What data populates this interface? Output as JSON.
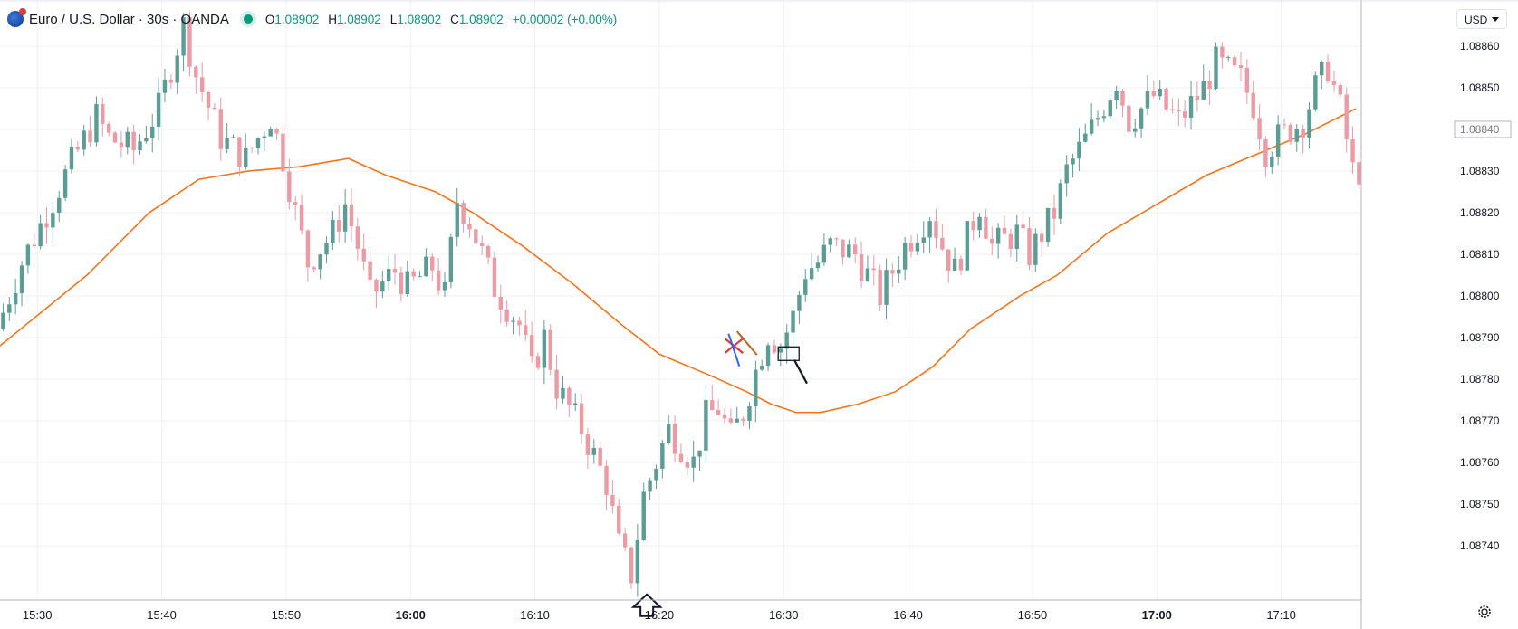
{
  "header": {
    "symbol_title": "Euro / U.S. Dollar · 30s · OANDA",
    "open_key": "O",
    "open": "1.08902",
    "high_key": "H",
    "high": "1.08902",
    "low_key": "L",
    "low": "1.08902",
    "close_key": "C",
    "close": "1.08902",
    "change": "+0.00002 (+0.00%)",
    "status": "market-open-dot"
  },
  "currency_selector": {
    "label": "USD"
  },
  "settings_icon": "gear-icon",
  "colors": {
    "up": "#5b9c94",
    "down": "#ec9aa3",
    "ma": "#f4741b",
    "grid": "#eef0f3",
    "axis_text": "#131722"
  },
  "chart_data": {
    "type": "candlestick",
    "interval": "30s",
    "y_axis": {
      "ylim": [
        1.08728,
        1.0887
      ],
      "ticks": [
        "1.08740",
        "1.08750",
        "1.08760",
        "1.08770",
        "1.08780",
        "1.08790",
        "1.08800",
        "1.08810",
        "1.08820",
        "1.08830",
        "1.08840",
        "1.08850",
        "1.08860"
      ],
      "current_price_label": "1.08840"
    },
    "x_axis": {
      "range": [
        "15:27",
        "17:16"
      ],
      "ticks": [
        {
          "t": "15:30",
          "label": "15:30",
          "bold": false
        },
        {
          "t": "15:40",
          "label": "15:40",
          "bold": false
        },
        {
          "t": "15:50",
          "label": "15:50",
          "bold": false
        },
        {
          "t": "16:00",
          "label": "16:00",
          "bold": true
        },
        {
          "t": "16:10",
          "label": "16:10",
          "bold": false
        },
        {
          "t": "16:20",
          "label": "16:20",
          "bold": false
        },
        {
          "t": "16:30",
          "label": "16:30",
          "bold": false
        },
        {
          "t": "16:40",
          "label": "16:40",
          "bold": false
        },
        {
          "t": "16:50",
          "label": "16:50",
          "bold": false
        },
        {
          "t": "17:00",
          "label": "17:00",
          "bold": true
        },
        {
          "t": "17:10",
          "label": "17:10",
          "bold": false
        }
      ]
    },
    "price_path": [
      [
        "15:27",
        1.08792
      ],
      [
        "15:29",
        1.08808
      ],
      [
        "15:31",
        1.0882
      ],
      [
        "15:33",
        1.08832
      ],
      [
        "15:35",
        1.08843
      ],
      [
        "15:36",
        1.08838
      ],
      [
        "15:38",
        1.08835
      ],
      [
        "15:40",
        1.08845
      ],
      [
        "15:41",
        1.08855
      ],
      [
        "15:42",
        1.08865
      ],
      [
        "15:43",
        1.08853
      ],
      [
        "15:45",
        1.08838
      ],
      [
        "15:47",
        1.08833
      ],
      [
        "15:49",
        1.08843
      ],
      [
        "15:50",
        1.08833
      ],
      [
        "15:51",
        1.0882
      ],
      [
        "15:52",
        1.08808
      ],
      [
        "15:54",
        1.08815
      ],
      [
        "15:55",
        1.08822
      ],
      [
        "15:56",
        1.08812
      ],
      [
        "15:57",
        1.088
      ],
      [
        "15:59",
        1.08806
      ],
      [
        "16:00",
        1.08802
      ],
      [
        "16:02",
        1.08807
      ],
      [
        "16:03",
        1.088
      ],
      [
        "16:04",
        1.08823
      ],
      [
        "16:05",
        1.08818
      ],
      [
        "16:07",
        1.08802
      ],
      [
        "16:09",
        1.08793
      ],
      [
        "16:10",
        1.08782
      ],
      [
        "16:11",
        1.0879
      ],
      [
        "16:12",
        1.08778
      ],
      [
        "16:14",
        1.08768
      ],
      [
        "16:16",
        1.08755
      ],
      [
        "16:17",
        1.0874
      ],
      [
        "16:18",
        1.08733
      ],
      [
        "16:19",
        1.08752
      ],
      [
        "16:21",
        1.08768
      ],
      [
        "16:23",
        1.0876
      ],
      [
        "16:24",
        1.08771
      ],
      [
        "16:25",
        1.08773
      ],
      [
        "16:26",
        1.08766
      ],
      [
        "16:27",
        1.08772
      ],
      [
        "16:28",
        1.08782
      ],
      [
        "16:29",
        1.08791
      ],
      [
        "16:30",
        1.08788
      ],
      [
        "16:31",
        1.08795
      ],
      [
        "16:32",
        1.08806
      ],
      [
        "16:33",
        1.08808
      ],
      [
        "16:34",
        1.08812
      ],
      [
        "16:36",
        1.0881
      ],
      [
        "16:38",
        1.088
      ],
      [
        "16:40",
        1.08812
      ],
      [
        "16:42",
        1.0882
      ],
      [
        "16:43",
        1.08812
      ],
      [
        "16:44",
        1.08806
      ],
      [
        "16:46",
        1.08822
      ],
      [
        "16:47",
        1.08812
      ],
      [
        "16:49",
        1.08815
      ],
      [
        "16:50",
        1.0881
      ],
      [
        "16:52",
        1.0882
      ],
      [
        "16:53",
        1.0883
      ],
      [
        "16:55",
        1.0884
      ],
      [
        "16:57",
        1.08852
      ],
      [
        "16:58",
        1.08842
      ],
      [
        "17:00",
        1.08848
      ],
      [
        "17:02",
        1.08842
      ],
      [
        "17:04",
        1.0885
      ],
      [
        "17:05",
        1.08856
      ],
      [
        "17:07",
        1.08852
      ],
      [
        "17:08",
        1.08846
      ],
      [
        "17:09",
        1.08835
      ],
      [
        "17:10",
        1.08838
      ],
      [
        "17:12",
        1.08842
      ],
      [
        "17:13",
        1.0885
      ],
      [
        "17:14",
        1.08855
      ],
      [
        "17:15",
        1.08845
      ],
      [
        "17:16",
        1.0883
      ]
    ],
    "moving_average": {
      "points": [
        [
          "15:27",
          1.08788
        ],
        [
          "15:34",
          1.08805
        ],
        [
          "15:39",
          1.0882
        ],
        [
          "15:43",
          1.08828
        ],
        [
          "15:47",
          1.0883
        ],
        [
          "15:51",
          1.08831
        ],
        [
          "15:55",
          1.08833
        ],
        [
          "15:58",
          1.08829
        ],
        [
          "16:02",
          1.08825
        ],
        [
          "16:05",
          1.0882
        ],
        [
          "16:09",
          1.08812
        ],
        [
          "16:13",
          1.08803
        ],
        [
          "16:17",
          1.08793
        ],
        [
          "16:20",
          1.08786
        ],
        [
          "16:24",
          1.08781
        ],
        [
          "16:27",
          1.08777
        ],
        [
          "16:29",
          1.08774
        ],
        [
          "16:31",
          1.08772
        ],
        [
          "16:33",
          1.08772
        ],
        [
          "16:36",
          1.08774
        ],
        [
          "16:39",
          1.08777
        ],
        [
          "16:42",
          1.08783
        ],
        [
          "16:45",
          1.08792
        ],
        [
          "16:49",
          1.088
        ],
        [
          "16:52",
          1.08805
        ],
        [
          "16:56",
          1.08815
        ],
        [
          "17:00",
          1.08822
        ],
        [
          "17:04",
          1.08829
        ],
        [
          "17:08",
          1.08834
        ],
        [
          "17:12",
          1.08839
        ],
        [
          "17:16",
          1.08845
        ]
      ]
    },
    "annotations": [
      {
        "type": "arrow-up-outline",
        "t": "16:19",
        "price": 1.0873
      },
      {
        "type": "cross-mark",
        "t": "16:26",
        "price": 1.08788
      },
      {
        "type": "blue-line",
        "t": "16:26",
        "price": 1.08787
      },
      {
        "type": "brown-line",
        "t": "16:28",
        "price": 1.08788
      },
      {
        "type": "rectangle",
        "t": "16:30",
        "price": 1.08786
      },
      {
        "type": "black-line",
        "t": "16:31",
        "price": 1.08782
      }
    ]
  }
}
